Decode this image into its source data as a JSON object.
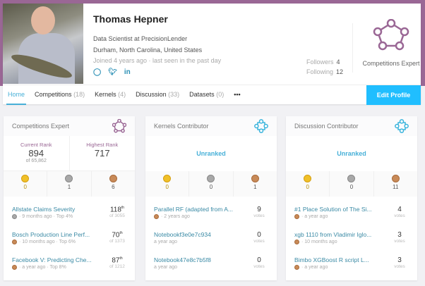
{
  "profile": {
    "name": "Thomas Hepner",
    "title": "Data Scientist at PrecisionLender",
    "location": "Durham, North Carolina, United States",
    "joined": "Joined 4 years ago · last seen in the past day",
    "social": [
      "github-icon",
      "twitter-icon",
      "linkedin-icon"
    ],
    "followers_label": "Followers",
    "followers": "4",
    "following_label": "Following",
    "following": "12",
    "tier": "Competitions Expert",
    "tier_color": "#9a6795"
  },
  "nav": {
    "tabs": [
      {
        "label": "Home"
      },
      {
        "label": "Competitions",
        "count": "(18)"
      },
      {
        "label": "Kernels",
        "count": "(4)"
      },
      {
        "label": "Discussion",
        "count": "(33)"
      },
      {
        "label": "Datasets",
        "count": "(0)"
      }
    ],
    "more": "•••",
    "edit": "Edit Profile",
    "accent": "#20beff"
  },
  "tiles": [
    {
      "title": "Competitions Expert",
      "current_label": "Current Rank",
      "current": "894",
      "current_of": "of 65,862",
      "highest_label": "Highest Rank",
      "highest": "717",
      "medals": [
        "0",
        "1",
        "6"
      ],
      "items": [
        {
          "title": "Allstate Claims Severity",
          "sub": "· 9 months ago · Top 4%",
          "medal": "silver",
          "rank": "118",
          "sup": "th",
          "of": "of 3055"
        },
        {
          "title": "Bosch Production Line Perf...",
          "sub": "· 10 months ago · Top 6%",
          "medal": "bronze",
          "rank": "70",
          "sup": "th",
          "of": "of 1373"
        },
        {
          "title": "Facebook V: Predicting Che...",
          "sub": "· a year ago · Top 8%",
          "medal": "bronze",
          "rank": "87",
          "sup": "th",
          "of": "of 1212"
        }
      ]
    },
    {
      "title": "Kernels Contributor",
      "unranked": "Unranked",
      "medals": [
        "0",
        "0",
        "1"
      ],
      "items": [
        {
          "title": "Parallel RF (adapted from A...",
          "sub": "· 2 years ago",
          "medal": "bronze",
          "rank": "9",
          "of": "votes"
        },
        {
          "title": "Notebookf3e0e7c934",
          "sub": "a year ago",
          "rank": "0",
          "of": "votes"
        },
        {
          "title": "Notebook47e8c7b5f8",
          "sub": "a year ago",
          "rank": "0",
          "of": "votes"
        }
      ]
    },
    {
      "title": "Discussion Contributor",
      "unranked": "Unranked",
      "medals": [
        "0",
        "0",
        "11"
      ],
      "items": [
        {
          "title": "#1 Place Solution of The Si...",
          "sub": "· a year ago",
          "medal": "bronze",
          "rank": "4",
          "of": "votes"
        },
        {
          "title": "xgb 1110 from Vladimir Iglo...",
          "sub": "· 10 months ago",
          "medal": "bronze",
          "rank": "3",
          "of": "votes"
        },
        {
          "title": "Bimbo XGBoost R script L...",
          "sub": "· a year ago",
          "medal": "bronze",
          "rank": "3",
          "of": "votes"
        }
      ]
    }
  ]
}
